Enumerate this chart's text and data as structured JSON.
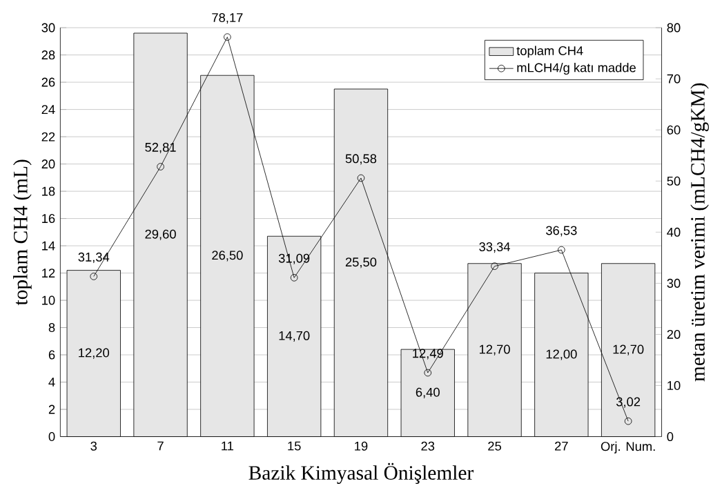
{
  "chart_data": {
    "type": "bar",
    "xlabel": "Bazik Kimyasal Önişlemler",
    "ylabel": "toplam CH4 (mL)",
    "y2label": "metan üretim verimi (mLCH4/gKM)",
    "categories": [
      "3",
      "7",
      "11",
      "15",
      "19",
      "23",
      "25",
      "27",
      "Orj. Num."
    ],
    "series": [
      {
        "name": "toplam CH4",
        "color": "#e6e6e6",
        "values": [
          12.2,
          29.6,
          26.5,
          14.7,
          25.5,
          6.4,
          12.7,
          12.0,
          12.7
        ],
        "value_labels": [
          "12,20",
          "29,60",
          "26,50",
          "14,70",
          "25,50",
          "6,40",
          "12,70",
          "12,00",
          "12,70"
        ]
      },
      {
        "name": "mLCH4/g katı madde",
        "type": "line",
        "axis": "y2",
        "color": "#000000",
        "marker": "circle",
        "values": [
          31.34,
          52.81,
          78.17,
          31.09,
          50.58,
          12.49,
          33.34,
          36.53,
          3.02
        ],
        "value_labels": [
          "31,34",
          "52,81",
          "78,17",
          "31,09",
          "50,58",
          "12,49",
          "33,34",
          "36,53",
          "3,02"
        ]
      }
    ],
    "ylim": [
      0,
      30
    ],
    "yticks": [
      0,
      2,
      4,
      6,
      8,
      10,
      12,
      14,
      16,
      18,
      20,
      22,
      24,
      26,
      28,
      30
    ],
    "y2lim": [
      0,
      80
    ],
    "y2ticks": [
      0,
      10,
      20,
      30,
      40,
      50,
      60,
      70,
      80
    ],
    "grid": "y",
    "legend": "top right"
  }
}
